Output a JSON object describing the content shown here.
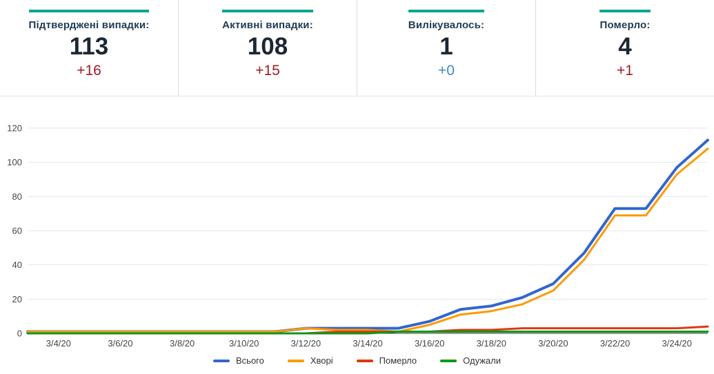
{
  "colors": {
    "accent": "#00a78e",
    "title_text": "#1f3b53",
    "value_text": "#1b2733",
    "grid": "#e6e6e6",
    "axis_baseline": "#333333",
    "axis_label": "#444444"
  },
  "cards": [
    {
      "title": "Підтверджені випадки:",
      "value": "113",
      "delta": "+16",
      "delta_color": "#9e1b22"
    },
    {
      "title": "Активні випадки:",
      "value": "108",
      "delta": "+15",
      "delta_color": "#9e1b22"
    },
    {
      "title": "Вилікувалось:",
      "value": "1",
      "delta": "+0",
      "delta_color": "#3c8dc5"
    },
    {
      "title": "Померло:",
      "value": "4",
      "delta": "+1",
      "delta_color": "#9e1b22"
    }
  ],
  "chart_data": {
    "type": "line",
    "x": [
      "3/3/20",
      "3/4/20",
      "3/5/20",
      "3/6/20",
      "3/7/20",
      "3/8/20",
      "3/9/20",
      "3/10/20",
      "3/11/20",
      "3/12/20",
      "3/13/20",
      "3/14/20",
      "3/15/20",
      "3/16/20",
      "3/17/20",
      "3/18/20",
      "3/19/20",
      "3/20/20",
      "3/21/20",
      "3/22/20",
      "3/23/20",
      "3/24/20",
      "3/25/20"
    ],
    "series": [
      {
        "name": "Всього",
        "slug": "total",
        "color": "#3366cc",
        "values": [
          1,
          1,
          1,
          1,
          1,
          1,
          1,
          1,
          1,
          3,
          3,
          3,
          3,
          7,
          14,
          16,
          21,
          29,
          47,
          73,
          73,
          97,
          113
        ]
      },
      {
        "name": "Хворі",
        "slug": "sick",
        "color": "#ff9900",
        "values": [
          1,
          1,
          1,
          1,
          1,
          1,
          1,
          1,
          1,
          3,
          2,
          2,
          1,
          5,
          11,
          13,
          17,
          25,
          43,
          69,
          69,
          93,
          108
        ]
      },
      {
        "name": "Померло",
        "slug": "died",
        "color": "#dc3912",
        "values": [
          0,
          0,
          0,
          0,
          0,
          0,
          0,
          0,
          0,
          0,
          1,
          1,
          1,
          1,
          2,
          2,
          3,
          3,
          3,
          3,
          3,
          3,
          4
        ]
      },
      {
        "name": "Одужали",
        "slug": "recovered",
        "color": "#109618",
        "values": [
          0,
          0,
          0,
          0,
          0,
          0,
          0,
          0,
          0,
          0,
          0,
          0,
          1,
          1,
          1,
          1,
          1,
          1,
          1,
          1,
          1,
          1,
          1
        ]
      }
    ],
    "ylim": [
      0,
      120
    ],
    "y_ticks": [
      0,
      20,
      40,
      60,
      80,
      100,
      120
    ],
    "x_tick_indices": [
      1,
      3,
      5,
      7,
      9,
      11,
      13,
      15,
      17,
      19,
      21
    ],
    "x_tick_labels": [
      "3/4/20",
      "3/6/20",
      "3/8/20",
      "3/10/20",
      "3/12/20",
      "3/14/20",
      "3/16/20",
      "3/18/20",
      "3/20/20",
      "3/22/20",
      "3/24/20"
    ],
    "grid": true,
    "legend_position": "bottom"
  }
}
